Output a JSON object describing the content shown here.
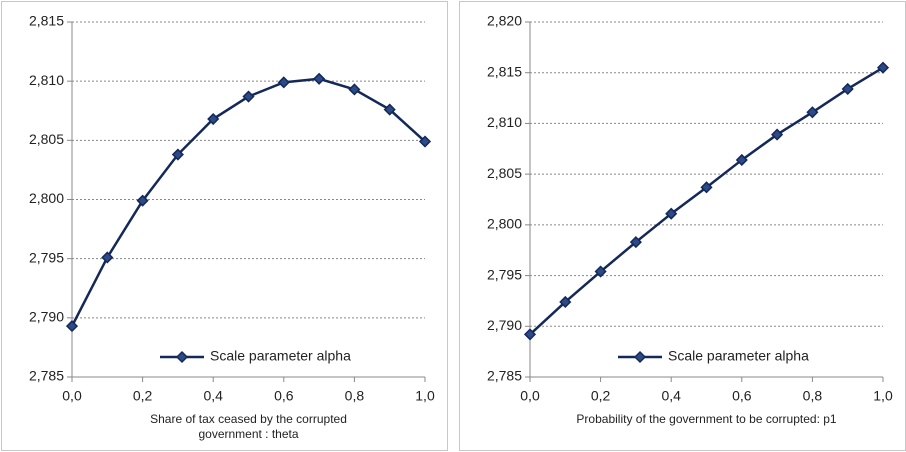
{
  "chart_data": [
    {
      "type": "line",
      "xlabel": "Share of tax ceased by the corrupted government : theta",
      "x": [
        0,
        0.1,
        0.2,
        0.3,
        0.4,
        0.5,
        0.6,
        0.7,
        0.8,
        0.9,
        1.0
      ],
      "series": [
        {
          "name": "Scale parameter alpha",
          "color": "#14285a",
          "values": [
            2.7893,
            2.7951,
            2.7999,
            2.8038,
            2.8068,
            2.8087,
            2.8099,
            2.8102,
            2.8093,
            2.8076,
            2.8049
          ]
        }
      ],
      "xlim": [
        0,
        1
      ],
      "xticks": [
        {
          "value": 0,
          "label": "0,0"
        },
        {
          "value": 0.2,
          "label": "0,2"
        },
        {
          "value": 0.4,
          "label": "0,4"
        },
        {
          "value": 0.6,
          "label": "0,6"
        },
        {
          "value": 0.8,
          "label": "0,8"
        },
        {
          "value": 1.0,
          "label": "1,0"
        }
      ],
      "ylim": [
        2.785,
        2.815
      ],
      "yticks": [
        {
          "value": 2.785,
          "label": "2,785"
        },
        {
          "value": 2.79,
          "label": "2,790"
        },
        {
          "value": 2.795,
          "label": "2,795"
        },
        {
          "value": 2.8,
          "label": "2,800"
        },
        {
          "value": 2.805,
          "label": "2,805"
        },
        {
          "value": 2.81,
          "label": "2,810"
        },
        {
          "value": 2.815,
          "label": "2,815"
        }
      ],
      "grid": true,
      "legend": "lower right"
    },
    {
      "type": "line",
      "xlabel": "Probability of the government to be corrupted: p1",
      "x": [
        0,
        0.1,
        0.2,
        0.3,
        0.4,
        0.5,
        0.6,
        0.7,
        0.8,
        0.9,
        1.0
      ],
      "series": [
        {
          "name": "Scale parameter alpha",
          "color": "#14285a",
          "values": [
            2.7892,
            2.7924,
            2.7954,
            2.7983,
            2.8011,
            2.8037,
            2.8064,
            2.8089,
            2.8111,
            2.8134,
            2.8155
          ]
        }
      ],
      "xlim": [
        0,
        1
      ],
      "xticks": [
        {
          "value": 0,
          "label": "0,0"
        },
        {
          "value": 0.2,
          "label": "0,2"
        },
        {
          "value": 0.4,
          "label": "0,4"
        },
        {
          "value": 0.6,
          "label": "0,6"
        },
        {
          "value": 0.8,
          "label": "0,8"
        },
        {
          "value": 1.0,
          "label": "1,0"
        }
      ],
      "ylim": [
        2.785,
        2.82
      ],
      "yticks": [
        {
          "value": 2.785,
          "label": "2,785"
        },
        {
          "value": 2.79,
          "label": "2,790"
        },
        {
          "value": 2.795,
          "label": "2,795"
        },
        {
          "value": 2.8,
          "label": "2,800"
        },
        {
          "value": 2.805,
          "label": "2,805"
        },
        {
          "value": 2.81,
          "label": "2,810"
        },
        {
          "value": 2.815,
          "label": "2,815"
        },
        {
          "value": 2.82,
          "label": "2,820"
        }
      ],
      "grid": true,
      "legend": "lower right"
    }
  ]
}
